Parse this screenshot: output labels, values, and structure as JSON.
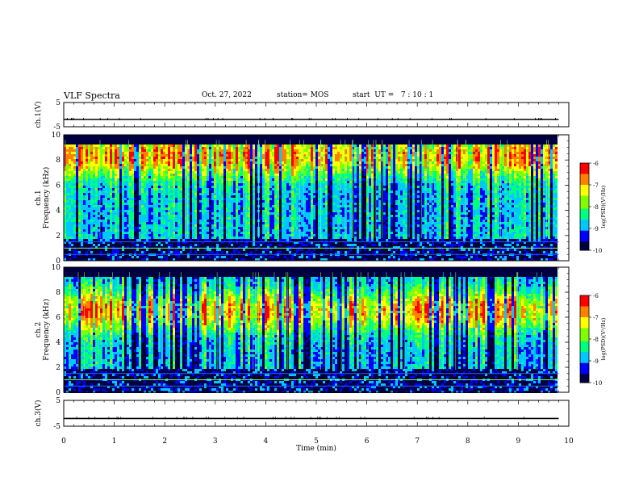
{
  "header": {
    "title": "VLF Spectra",
    "date": "Oct. 27, 2022",
    "station": "station= MOS",
    "start": "start  UT =   7 : 10 : 1"
  },
  "chart_data": [
    {
      "type": "line",
      "panel": "ch1-waveform",
      "ylabel": "ch.1(V)",
      "ylim": [
        -5,
        5
      ],
      "yticks": [
        "5",
        "-5"
      ],
      "xlim": [
        0,
        10
      ],
      "series": [
        {
          "x": [
            0,
            9.8
          ],
          "values": [
            -2,
            -2
          ]
        }
      ]
    },
    {
      "type": "heatmap",
      "panel": "ch1-spectrogram",
      "ylabel": "ch.1 Frequency (kHz)",
      "ylim": [
        0,
        10
      ],
      "yticks": [
        "0",
        "2",
        "4",
        "6",
        "8",
        "10"
      ],
      "xlim": [
        0,
        10
      ],
      "data_xmax": 9.8,
      "band_peak_khz": 8.4,
      "colorbar": {
        "label": "log(PSD)(V²/Hz)",
        "range": [
          -10,
          -6
        ],
        "ticks": [
          "-6",
          "-7",
          "-8",
          "-9",
          "-10"
        ]
      }
    },
    {
      "type": "heatmap",
      "panel": "ch2-spectrogram",
      "ylabel": "ch.2 Frequency (kHz)",
      "ylim": [
        0,
        10
      ],
      "yticks": [
        "0",
        "2",
        "4",
        "6",
        "8",
        "10"
      ],
      "xlim": [
        0,
        10
      ],
      "data_xmax": 9.8,
      "band_peak_khz": 6.6,
      "colorbar": {
        "label": "log(PSD)(V²/Hz)",
        "range": [
          -10,
          -6
        ],
        "ticks": [
          "-6",
          "-7",
          "-8",
          "-9",
          "-10"
        ]
      }
    },
    {
      "type": "line",
      "panel": "ch3-waveform",
      "ylabel": "ch.3(V)",
      "ylim": [
        -5,
        5
      ],
      "yticks": [
        "5",
        "-5"
      ],
      "xlim": [
        0,
        10
      ],
      "series": [
        {
          "x": [
            0,
            9.8
          ],
          "values": [
            -2,
            -2
          ]
        }
      ]
    }
  ],
  "xaxis": {
    "label": "Time  (min)",
    "ticks": [
      "0",
      "1",
      "2",
      "3",
      "4",
      "5",
      "6",
      "7",
      "8",
      "9",
      "10"
    ]
  },
  "colors": {
    "colormap": [
      "#000040",
      "#0000ff",
      "#00c8ff",
      "#00ff80",
      "#80ff00",
      "#ffff00",
      "#ff8000",
      "#ff0000",
      "#ffffff"
    ],
    "axis": "#000000"
  }
}
